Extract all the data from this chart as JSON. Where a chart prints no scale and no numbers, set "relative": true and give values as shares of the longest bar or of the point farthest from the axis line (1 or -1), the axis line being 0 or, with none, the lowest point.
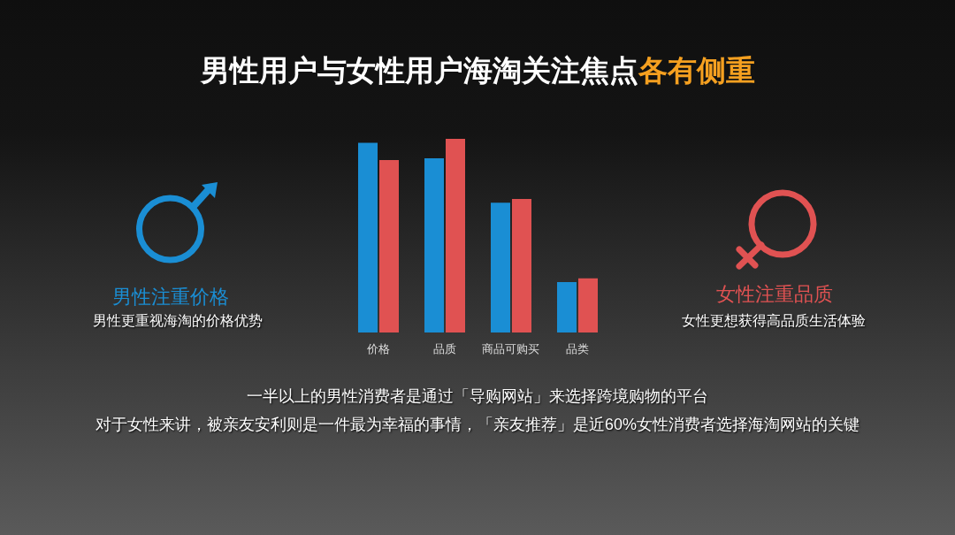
{
  "chart_data": {
    "type": "bar",
    "title": "男性用户与女性用户海淘关注焦点各有侧重",
    "categories": [
      "价格",
      "品质",
      "商品可购买",
      "品类"
    ],
    "series": [
      {
        "color": "#1a8ed4",
        "values": [
          0.98,
          0.9,
          0.67,
          0.26
        ]
      },
      {
        "color": "#e05252",
        "values": [
          0.89,
          1,
          0.69,
          0.28
        ]
      }
    ],
    "relative": true,
    "annotations": [
      "男性注重价格",
      "男性更重视海淘的价格优势",
      "女性注重品质",
      "女性更想获得高品质生活体验",
      "一半以上的男性消费者是通过「导购网站」来选择跨境购物的平台",
      "对于女性来讲，被亲友安利则是一件最为幸福的事情，「亲友推荐」是近60%女性消费者选择海淘网站的关键"
    ]
  }
}
